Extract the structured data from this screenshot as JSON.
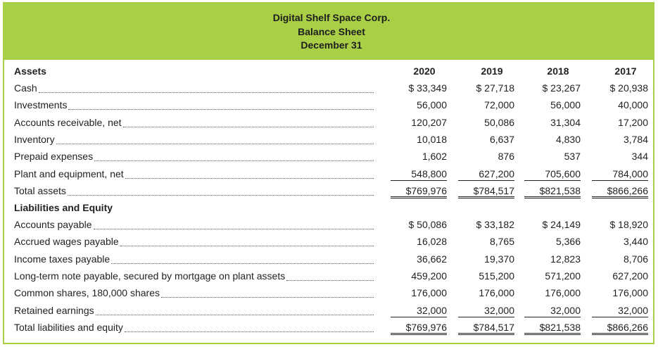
{
  "header": {
    "company": "Digital Shelf Space Corp.",
    "statement": "Balance Sheet",
    "date": "December 31"
  },
  "columns": [
    "2020",
    "2019",
    "2018",
    "2017"
  ],
  "sections": {
    "assets_title": "Assets",
    "liabilities_title": "Liabilities and Equity"
  },
  "assets": [
    {
      "label": "Cash",
      "values": [
        "$ 33,349",
        "$ 27,718",
        "$ 23,267",
        "$ 20,938"
      ]
    },
    {
      "label": "Investments",
      "values": [
        "56,000",
        "72,000",
        "56,000",
        "40,000"
      ]
    },
    {
      "label": "Accounts receivable, net",
      "values": [
        "120,207",
        "50,086",
        "31,304",
        "17,200"
      ]
    },
    {
      "label": "Inventory",
      "values": [
        "10,018",
        "6,637",
        "4,830",
        "3,784"
      ]
    },
    {
      "label": "Prepaid expenses",
      "values": [
        "1,602",
        "876",
        "537",
        "344"
      ]
    },
    {
      "label": "Plant and equipment, net",
      "values": [
        "548,800",
        "627,200",
        "705,600",
        "784,000"
      ]
    },
    {
      "label": "Total assets",
      "values": [
        "$769,976",
        "$784,517",
        "$821,538",
        "$866,266"
      ]
    }
  ],
  "liabilities": [
    {
      "label": "Accounts payable",
      "values": [
        "$ 50,086",
        "$ 33,182",
        "$ 24,149",
        "$ 18,920"
      ]
    },
    {
      "label": "Accrued wages payable",
      "values": [
        "16,028",
        "8,765",
        "5,366",
        "3,440"
      ]
    },
    {
      "label": "Income taxes payable",
      "values": [
        "36,662",
        "19,370",
        "12,823",
        "8,706"
      ]
    },
    {
      "label": "Long-term note payable, secured by mortgage on plant assets",
      "values": [
        "459,200",
        "515,200",
        "571,200",
        "627,200"
      ]
    },
    {
      "label": "Common shares, 180,000 shares",
      "values": [
        "176,000",
        "176,000",
        "176,000",
        "176,000"
      ]
    },
    {
      "label": "Retained earnings",
      "values": [
        "32,000",
        "32,000",
        "32,000",
        "32,000"
      ]
    },
    {
      "label": "Total liabilities and equity",
      "values": [
        "$769,976",
        "$784,517",
        "$821,538",
        "$866,266"
      ]
    }
  ]
}
